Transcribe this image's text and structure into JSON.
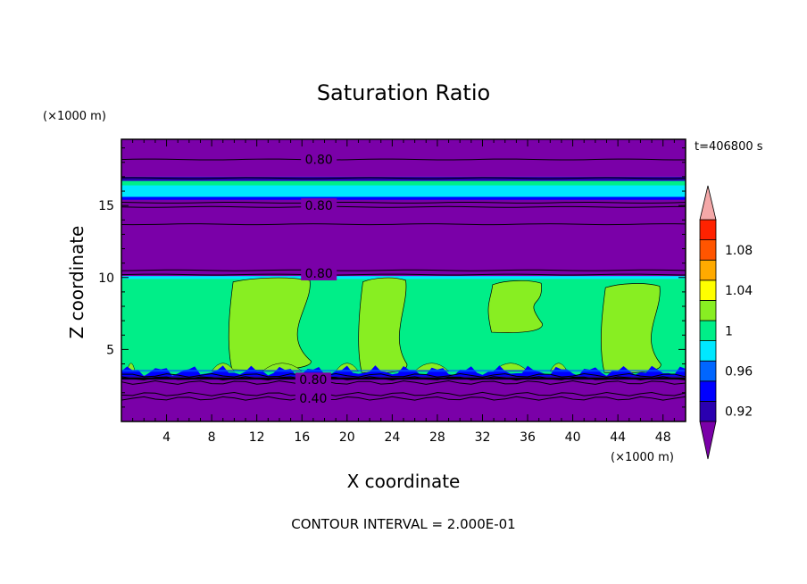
{
  "chart_data": {
    "type": "heatmap",
    "title": "Saturation Ratio",
    "xlabel": "X coordinate",
    "ylabel": "Z coordinate",
    "x_unit": "(×1000 m)",
    "y_unit": "(×1000 m)",
    "time_label": "t=406800 s",
    "footer": "CONTOUR INTERVAL = 2.000E-01",
    "xlim": [
      0,
      50
    ],
    "ylim": [
      0,
      19.6
    ],
    "x_ticks": [
      4,
      8,
      12,
      16,
      20,
      24,
      28,
      32,
      36,
      40,
      44,
      48
    ],
    "y_ticks": [
      5,
      10,
      15
    ],
    "colorbar": {
      "levels": [
        0.92,
        0.94,
        0.96,
        0.98,
        1.0,
        1.02,
        1.04,
        1.06,
        1.08,
        1.1
      ],
      "tick_labels": [
        "0.92",
        "0.96",
        "1",
        "1.04",
        "1.08"
      ],
      "tick_values": [
        0.92,
        0.96,
        1.0,
        1.04,
        1.08
      ],
      "colors": [
        "#7a00a8",
        "#2a00b0",
        "#0000ff",
        "#0066ff",
        "#00e8ff",
        "#00ee88",
        "#88ee22",
        "#ffff00",
        "#ffaa00",
        "#ff5500",
        "#ff2200",
        "#f4a8a8"
      ],
      "extend": "both"
    },
    "bands": [
      {
        "z0": 0,
        "z1": 3.2,
        "value": "<0.92"
      },
      {
        "z0": 3.2,
        "z1": 10.0,
        "value": "0.98-1.00"
      },
      {
        "z0": 10.0,
        "z1": 15.5,
        "value": "<0.92"
      },
      {
        "z0": 15.5,
        "z1": 17.0,
        "value": "0.94-0.98"
      },
      {
        "z0": 17.0,
        "z1": 19.6,
        "value": "<0.92"
      }
    ],
    "cells": [
      {
        "x": [
          9.5,
          17.0
        ],
        "z": [
          3.6,
          10.0
        ]
      },
      {
        "x": [
          21.0,
          25.5
        ],
        "z": [
          3.4,
          10.0
        ]
      },
      {
        "x": [
          32.5,
          37.5
        ],
        "z": [
          6.2,
          9.8
        ]
      },
      {
        "x": [
          42.5,
          48.0
        ],
        "z": [
          3.4,
          9.6
        ]
      }
    ],
    "contour_labels": [
      {
        "text": "0.80",
        "x": 17.5,
        "z": 18.2
      },
      {
        "text": "0.80",
        "x": 17.5,
        "z": 15.0
      },
      {
        "text": "0.80",
        "x": 17.5,
        "z": 10.3
      },
      {
        "text": "0.80",
        "x": 17.0,
        "z": 2.9
      },
      {
        "text": "0.40",
        "x": 17.0,
        "z": 1.6
      }
    ],
    "contour_lines_z": [
      18.2,
      16.9,
      15.2,
      14.9,
      13.7,
      10.5,
      10.2,
      3.2,
      3.0,
      2.7,
      1.9,
      1.6
    ]
  }
}
